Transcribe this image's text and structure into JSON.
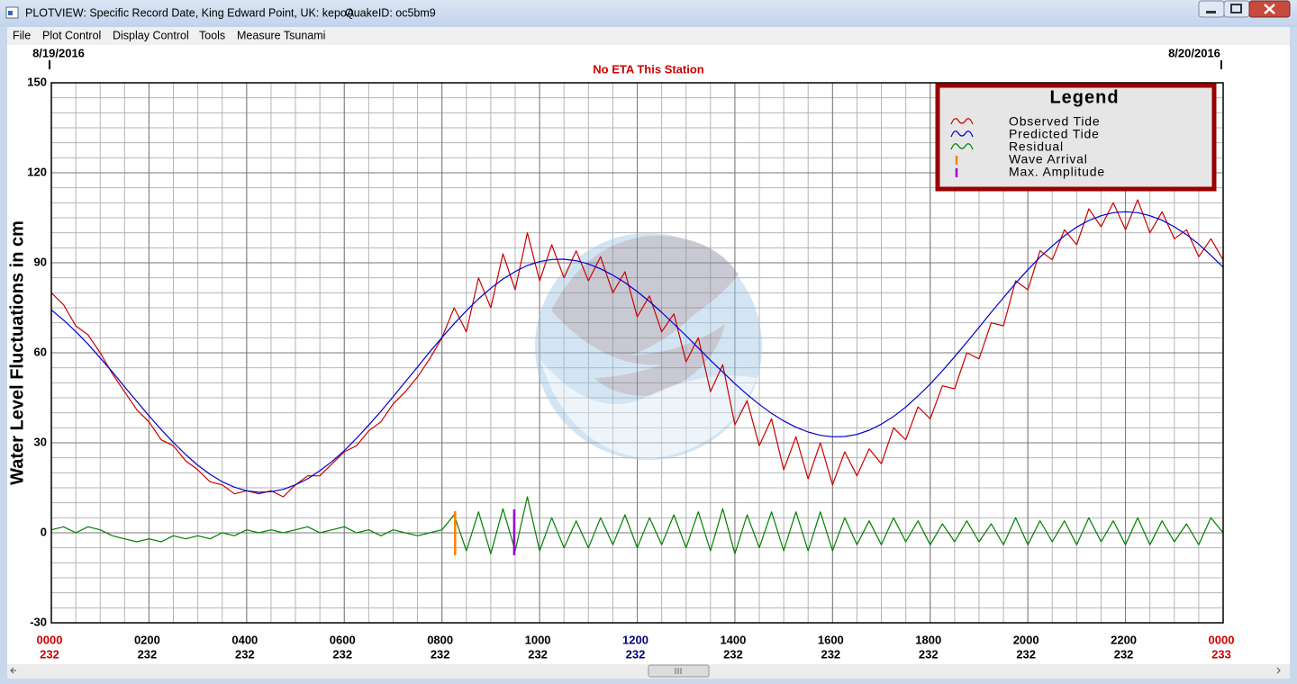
{
  "window": {
    "title": "PLOTVIEW: Specific Record Date, King Edward Point, UK: kepoA",
    "quake_id": "QuakeID: oc5bm9"
  },
  "menu": [
    "File",
    "Plot Control",
    "Display Control",
    "Tools",
    "Measure Tsunami"
  ],
  "chart_data": {
    "type": "line",
    "title": "No ETA This Station",
    "date_labels": [
      "8/19/2016",
      "8/20/2016"
    ],
    "y_label": "Water Level Fluctuations in cm",
    "legend_title": "Legend",
    "legend": "upper right",
    "grid": true,
    "minor_grid": {
      "x_step": 0.5,
      "y_step": 5
    },
    "xlim": [
      0,
      24
    ],
    "xticks": [
      {
        "value": 0,
        "label": "0000"
      },
      {
        "value": 2,
        "label": "0200"
      },
      {
        "value": 4,
        "label": "0400"
      },
      {
        "value": 6,
        "label": "0600"
      },
      {
        "value": 8,
        "label": "0800"
      },
      {
        "value": 10,
        "label": "1000"
      },
      {
        "value": 12,
        "label": "1200"
      },
      {
        "value": 14,
        "label": "1400"
      },
      {
        "value": 16,
        "label": "1600"
      },
      {
        "value": 18,
        "label": "1800"
      },
      {
        "value": 20,
        "label": "2000"
      },
      {
        "value": 22,
        "label": "2200"
      },
      {
        "value": 24,
        "label": "0000"
      }
    ],
    "xtick_days": [
      "232",
      "232",
      "232",
      "232",
      "232",
      "232",
      "232",
      "232",
      "232",
      "232",
      "232",
      "232",
      "233"
    ],
    "xtick_colors": [
      "#cc0000",
      "#000000",
      "#000000",
      "#000000",
      "#000000",
      "#000000",
      "#000080",
      "#000000",
      "#000000",
      "#000000",
      "#000000",
      "#000000",
      "#cc0000"
    ],
    "ylim": [
      -30,
      150
    ],
    "yticks": [
      -30,
      0,
      30,
      60,
      90,
      120,
      150
    ],
    "x": [
      0,
      0.25,
      0.5,
      0.75,
      1,
      1.25,
      1.5,
      1.75,
      2,
      2.25,
      2.5,
      2.75,
      3,
      3.25,
      3.5,
      3.75,
      4,
      4.25,
      4.5,
      4.75,
      5,
      5.25,
      5.5,
      5.75,
      6,
      6.25,
      6.5,
      6.75,
      7,
      7.25,
      7.5,
      7.75,
      8,
      8.25,
      8.5,
      8.75,
      9,
      9.25,
      9.5,
      9.75,
      10,
      10.25,
      10.5,
      10.75,
      11,
      11.25,
      11.5,
      11.75,
      12,
      12.25,
      12.5,
      12.75,
      13,
      13.25,
      13.5,
      13.75,
      14,
      14.25,
      14.5,
      14.75,
      15,
      15.25,
      15.5,
      15.75,
      16,
      16.25,
      16.5,
      16.75,
      17,
      17.25,
      17.5,
      17.75,
      18,
      18.25,
      18.5,
      18.75,
      19,
      19.25,
      19.5,
      19.75,
      20,
      20.25,
      20.5,
      20.75,
      21,
      21.25,
      21.5,
      21.75,
      22,
      22.25,
      22.5,
      22.75,
      23,
      23.25,
      23.5,
      23.75,
      24
    ],
    "series": [
      {
        "name": "Observed Tide",
        "color": "#cc0000",
        "values": [
          80,
          76,
          69,
          66,
          60,
          53,
          47,
          41,
          37,
          31,
          29,
          24,
          21,
          17,
          16,
          13,
          14,
          13,
          14,
          12,
          16,
          19,
          19,
          23,
          27,
          29,
          34,
          37,
          43,
          47,
          52,
          58,
          65,
          75,
          67,
          85,
          75,
          93,
          81,
          100,
          84,
          96,
          85,
          94,
          84,
          92,
          80,
          87,
          72,
          79,
          67,
          73,
          57,
          65,
          47,
          56,
          36,
          44,
          29,
          38,
          21,
          32,
          18,
          30,
          16,
          27,
          19,
          28,
          23,
          35,
          31,
          42,
          38,
          49,
          48,
          60,
          58,
          70,
          69,
          84,
          81,
          94,
          91,
          101,
          96,
          108,
          102,
          110,
          101,
          111,
          100,
          107,
          98,
          101,
          92,
          98,
          91
        ]
      },
      {
        "name": "Predicted Tide",
        "color": "#0000cc",
        "values": [
          74.3,
          70.9,
          67.1,
          62.9,
          58.3,
          53.6,
          48.7,
          43.8,
          39.0,
          34.4,
          30.1,
          26.1,
          22.5,
          19.5,
          17.0,
          15.2,
          14.0,
          13.5,
          13.7,
          14.5,
          16.0,
          18.0,
          20.7,
          23.8,
          27.4,
          31.5,
          35.9,
          40.5,
          45.4,
          50.3,
          55.3,
          60.3,
          65.1,
          69.7,
          74.0,
          78.0,
          81.5,
          84.6,
          87.1,
          89.1,
          90.4,
          91.1,
          91.2,
          90.7,
          89.6,
          88.0,
          85.9,
          83.4,
          80.4,
          77.1,
          73.5,
          69.6,
          65.7,
          61.6,
          57.5,
          53.6,
          49.7,
          46.1,
          42.8,
          39.8,
          37.3,
          35.2,
          33.6,
          32.5,
          32.0,
          32.1,
          32.8,
          34.2,
          36.2,
          38.8,
          41.9,
          45.6,
          49.6,
          54.0,
          58.7,
          63.5,
          68.5,
          73.5,
          78.4,
          83.2,
          87.7,
          91.9,
          95.6,
          99.0,
          101.9,
          104.1,
          105.7,
          106.7,
          107.0,
          106.7,
          105.7,
          104.2,
          102.0,
          99.4,
          96.2,
          92.5,
          88.5
        ]
      },
      {
        "name": "Residual",
        "color": "#008000",
        "values": [
          1,
          2,
          0,
          2,
          1,
          -1,
          -2,
          -3,
          -2,
          -3,
          -1,
          -2,
          -1,
          -2,
          0,
          -1,
          1,
          0,
          1,
          0,
          1,
          2,
          0,
          1,
          2,
          0,
          1,
          -1,
          1,
          0,
          -1,
          0,
          1,
          6,
          -6,
          7,
          -7,
          8,
          -6,
          12,
          -6,
          5,
          -5,
          4,
          -5,
          5,
          -4,
          6,
          -5,
          5,
          -4,
          6,
          -5,
          7,
          -6,
          8,
          -7,
          6,
          -5,
          7,
          -6,
          7,
          -6,
          7,
          -6,
          5,
          -4,
          4,
          -4,
          5,
          -3,
          4,
          -4,
          3,
          -3,
          4,
          -3,
          3,
          -4,
          5,
          -4,
          4,
          -3,
          4,
          -4,
          5,
          -3,
          4,
          -4,
          5,
          -4,
          4,
          -3,
          3,
          -4,
          5,
          0
        ]
      }
    ],
    "markers": [
      {
        "name": "Wave Arrival",
        "color": "#ff8000",
        "x": 8.27,
        "y_range": [
          -7.5,
          7.2
        ]
      },
      {
        "name": "Max. Amplitude",
        "color": "#9900cc",
        "x": 9.48,
        "y_range": [
          -7.5,
          7.8
        ]
      }
    ]
  }
}
